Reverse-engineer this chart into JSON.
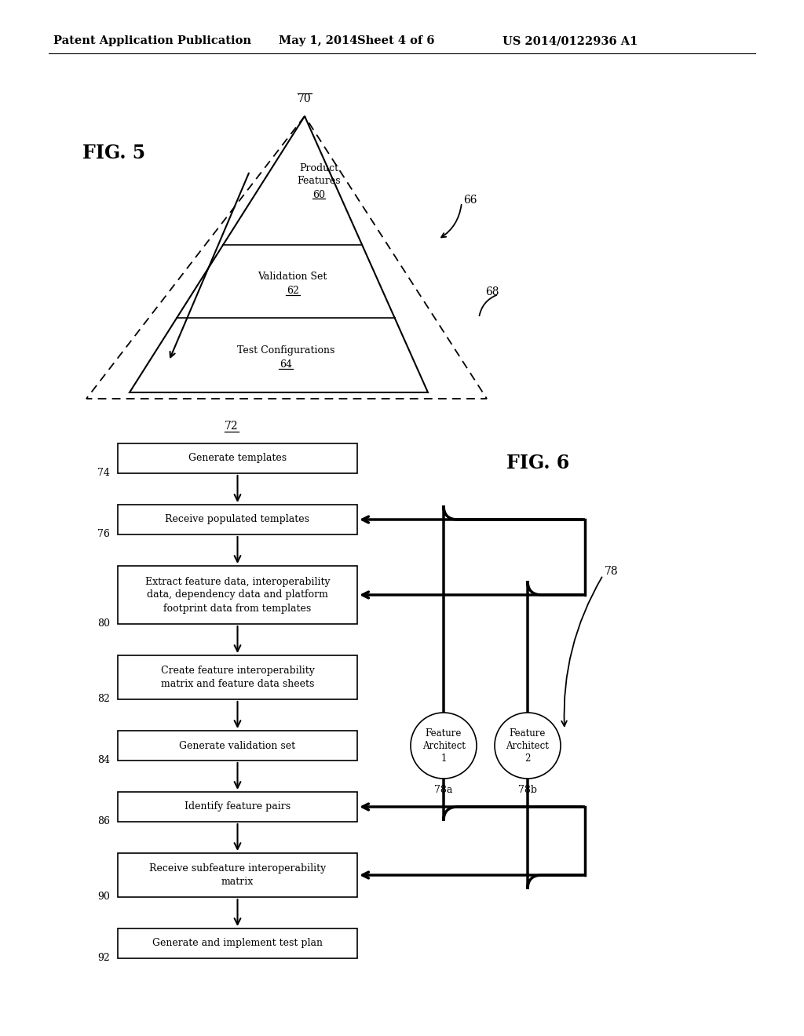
{
  "bg_color": "#ffffff",
  "header_text": "Patent Application Publication",
  "header_date": "May 1, 2014",
  "header_sheet": "Sheet 4 of 6",
  "header_patent": "US 2014/0122936 A1",
  "fig5_label": "FIG. 5",
  "fig6_label": "FIG. 6",
  "flowchart_steps": [
    {
      "id": "74",
      "label": "Generate templates",
      "lines": 1
    },
    {
      "id": "76",
      "label": "Receive populated templates",
      "lines": 1
    },
    {
      "id": "80",
      "label": "Extract feature data, interoperability\ndata, dependency data and platform\nfootprint data from templates",
      "lines": 3
    },
    {
      "id": "82",
      "label": "Create feature interoperability\nmatrix and feature data sheets",
      "lines": 2
    },
    {
      "id": "84",
      "label": "Generate validation set",
      "lines": 1
    },
    {
      "id": "86",
      "label": "Identify feature pairs",
      "lines": 1
    },
    {
      "id": "90",
      "label": "Receive subfeature interoperability\nmatrix",
      "lines": 2
    },
    {
      "id": "92",
      "label": "Generate and implement test plan",
      "lines": 1
    }
  ]
}
